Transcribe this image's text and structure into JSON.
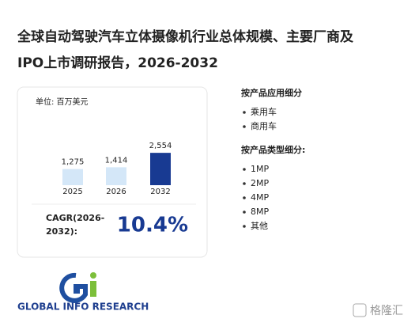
{
  "header": {
    "title_line1": "全球自动驾驶汽车立体摄像机行业总体规模、主要厂商及",
    "title_line2": "IPO上市调研报告，2026-2032"
  },
  "chart_data": {
    "type": "bar",
    "unit": "单位: 百万美元",
    "categories": [
      "2025",
      "2026",
      "2032"
    ],
    "values": [
      1275,
      1414,
      2554
    ],
    "value_labels": [
      "1,275",
      "1,414",
      "2,554"
    ],
    "colors": [
      "#d4e7f8",
      "#d4e7f8",
      "#183a92"
    ]
  },
  "cagr": {
    "label_line1": "CAGR(2026-",
    "label_line2": "2032):",
    "value": "10.4%"
  },
  "segments": [
    {
      "title": "按产品应用细分",
      "items": [
        "乘用车",
        "商用车"
      ]
    },
    {
      "title": "按产品类型细分:",
      "items": [
        "1MP",
        "2MP",
        "4MP",
        "8MP",
        "其他"
      ]
    }
  ],
  "logo": {
    "text": "GLOBAL INFO RESEARCH"
  },
  "watermark": {
    "text": "格隆汇"
  }
}
